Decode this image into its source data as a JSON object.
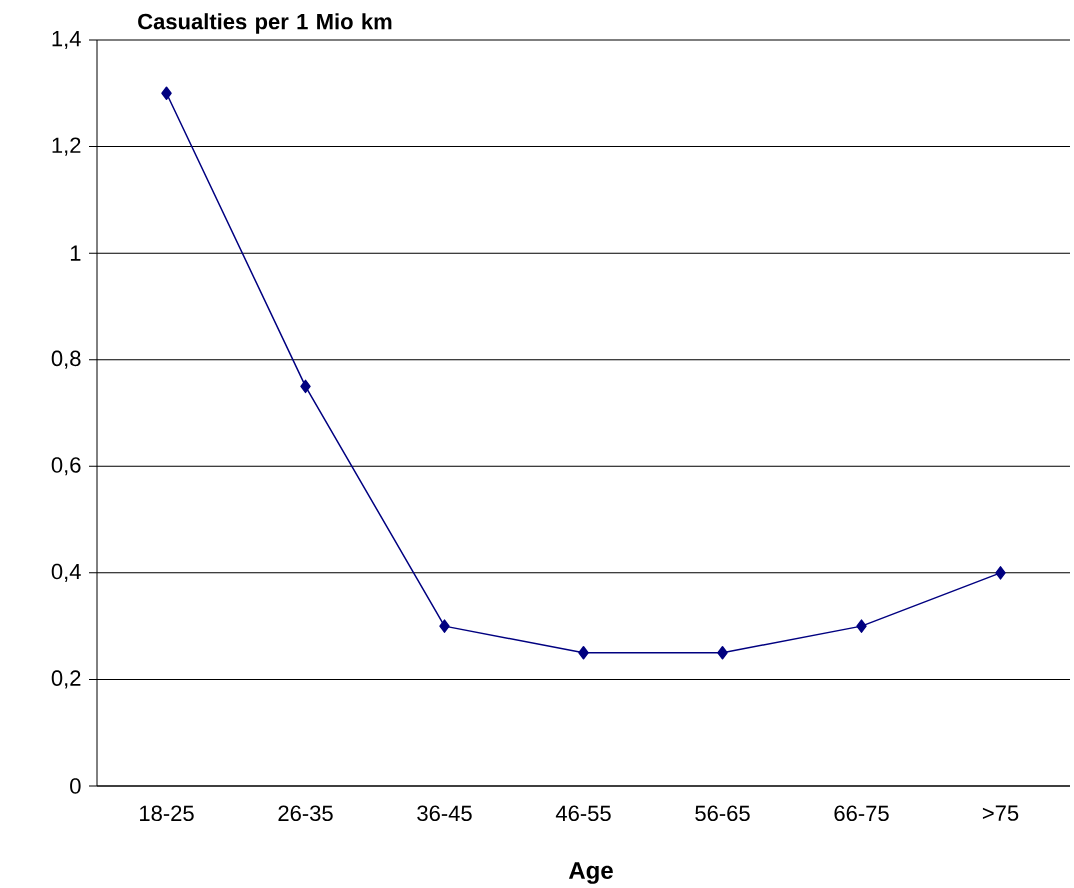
{
  "chart_data": {
    "type": "line",
    "ylabel": "Casualties per 1 Mio km",
    "xlabel": "Age",
    "categories": [
      "18-25",
      "26-35",
      "36-45",
      "46-55",
      "56-65",
      "66-75",
      ">75"
    ],
    "series": [
      {
        "color": "#000080",
        "values": [
          1.3,
          0.75,
          0.3,
          0.25,
          0.25,
          0.3,
          0.4
        ]
      }
    ],
    "ylim": [
      0,
      1.4
    ],
    "yticks": [
      0,
      {
        "value": 0.2,
        "label": "0,2"
      },
      {
        "value": 0.4,
        "label": "0,4"
      },
      {
        "value": 0.6,
        "label": "0,6"
      },
      {
        "value": 0.8,
        "label": "0,8"
      },
      1,
      {
        "value": 1.2,
        "label": "1,2"
      },
      {
        "value": 1.4,
        "label": "1,4"
      }
    ],
    "grid": "y",
    "marker": "diamond",
    "line_style": "solid"
  }
}
